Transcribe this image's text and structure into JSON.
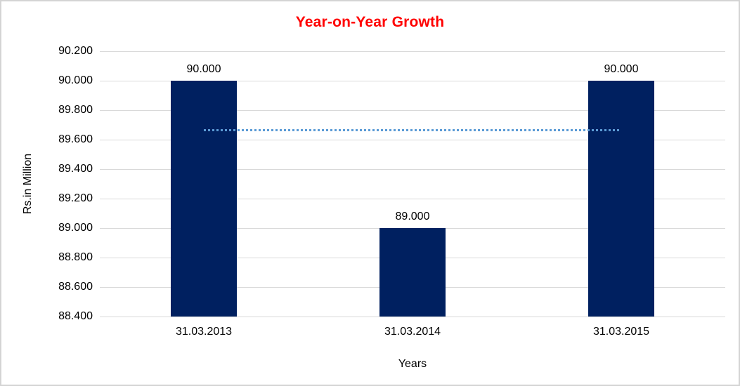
{
  "title": {
    "text": "Year-on-Year Growth",
    "color": "#ff0000"
  },
  "axes": {
    "x_title": "Years",
    "y_title": "Rs.in Million"
  },
  "chart_data": {
    "type": "bar",
    "title": "Year-on-Year Growth",
    "xlabel": "Years",
    "ylabel": "Rs.in Million",
    "categories": [
      "31.03.2013",
      "31.03.2014",
      "31.03.2015"
    ],
    "values": [
      90.0,
      89.0,
      90.0
    ],
    "data_labels": [
      "90.000",
      "89.000",
      "90.000"
    ],
    "ylim": [
      88.4,
      90.2
    ],
    "y_tick_step": 0.2,
    "y_tick_labels": [
      "90.200",
      "90.000",
      "89.800",
      "89.600",
      "89.400",
      "89.200",
      "89.000",
      "88.800",
      "88.600",
      "88.400"
    ],
    "grid": true,
    "legend": "none",
    "average_line": {
      "value": 89.667,
      "style": "dotted",
      "spans_categories": [
        0,
        2
      ]
    }
  },
  "colors": {
    "bar": "#002060",
    "average_line": "#5b9bd5",
    "gridline": "#d9d9d9",
    "title": "#ff0000",
    "text": "#000000",
    "background": "#ffffff",
    "frame_border": "#d4d4d4"
  }
}
